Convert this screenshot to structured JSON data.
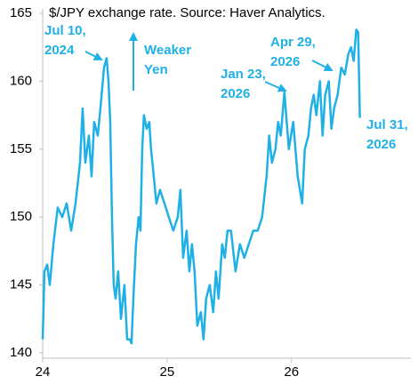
{
  "chart_data": {
    "type": "line",
    "title": "$/JPY exchange rate. Source: Haver Analytics.",
    "x": [
      24.0,
      24.014,
      24.036,
      24.057,
      24.086,
      24.121,
      24.157,
      24.193,
      24.229,
      24.264,
      24.3,
      24.321,
      24.343,
      24.371,
      24.393,
      24.414,
      24.443,
      24.464,
      24.493,
      24.514,
      24.529,
      24.543,
      24.557,
      24.571,
      24.586,
      24.607,
      24.629,
      24.657,
      24.679,
      24.7,
      24.714,
      24.729,
      24.75,
      24.771,
      24.786,
      24.8,
      24.814,
      24.836,
      24.857,
      24.871,
      24.893,
      24.914,
      24.943,
      24.979,
      25.014,
      25.05,
      25.086,
      25.107,
      25.129,
      25.157,
      25.179,
      25.2,
      25.221,
      25.243,
      25.271,
      25.293,
      25.314,
      25.343,
      25.371,
      25.393,
      25.414,
      25.443,
      25.464,
      25.486,
      25.514,
      25.55,
      25.586,
      25.621,
      25.657,
      25.693,
      25.729,
      25.764,
      25.8,
      25.821,
      25.843,
      25.871,
      25.893,
      25.914,
      25.943,
      25.979,
      26.014,
      26.05,
      26.086,
      26.107,
      26.136,
      26.157,
      26.179,
      26.2,
      26.229,
      26.25,
      26.271,
      26.3,
      26.321,
      26.343,
      26.371,
      26.4,
      26.429,
      26.457,
      26.479,
      26.5,
      26.521,
      26.536,
      26.55
    ],
    "series": [
      {
        "name": "$/JPY",
        "color": "#1fb0e6",
        "values": [
          141,
          146,
          146.5,
          145,
          148,
          150.7,
          150,
          151,
          149,
          151,
          154,
          158,
          154,
          156,
          153,
          157,
          156,
          158,
          161,
          161.7,
          160,
          157,
          150,
          145,
          144,
          146,
          142.5,
          145,
          141,
          141,
          140.7,
          144,
          148,
          150,
          149,
          155,
          157.5,
          156.5,
          157,
          155,
          153,
          151,
          152,
          151,
          150,
          149,
          150,
          152,
          147,
          149,
          146,
          148,
          146,
          142,
          143,
          141,
          144,
          145,
          143,
          146,
          144,
          148,
          147,
          149,
          149,
          146,
          148,
          147,
          148,
          149,
          149,
          150,
          153,
          156,
          154,
          155,
          157,
          156,
          159.2,
          155,
          157,
          153,
          151,
          155,
          156,
          158,
          159,
          157.5,
          160,
          156,
          159,
          160,
          156.5,
          158,
          159,
          161,
          160.5,
          162,
          162.5,
          161.5,
          163.8,
          163.6,
          157.3
        ]
      }
    ],
    "xlim": [
      24,
      26.96
    ],
    "xticks": [
      24,
      25,
      26
    ],
    "ylim": [
      140,
      165
    ],
    "yticks": [
      140,
      145,
      150,
      155,
      160,
      165
    ],
    "annotations": [
      {
        "lines": [
          "Jul 10,",
          "2024"
        ]
      },
      {
        "lines": [
          "Weaker",
          "Yen"
        ]
      },
      {
        "lines": [
          "Jan 23,",
          "2026"
        ]
      },
      {
        "lines": [
          "Apr 29,",
          "2026"
        ]
      },
      {
        "lines": [
          "Jul 31,",
          "2026"
        ]
      }
    ]
  }
}
